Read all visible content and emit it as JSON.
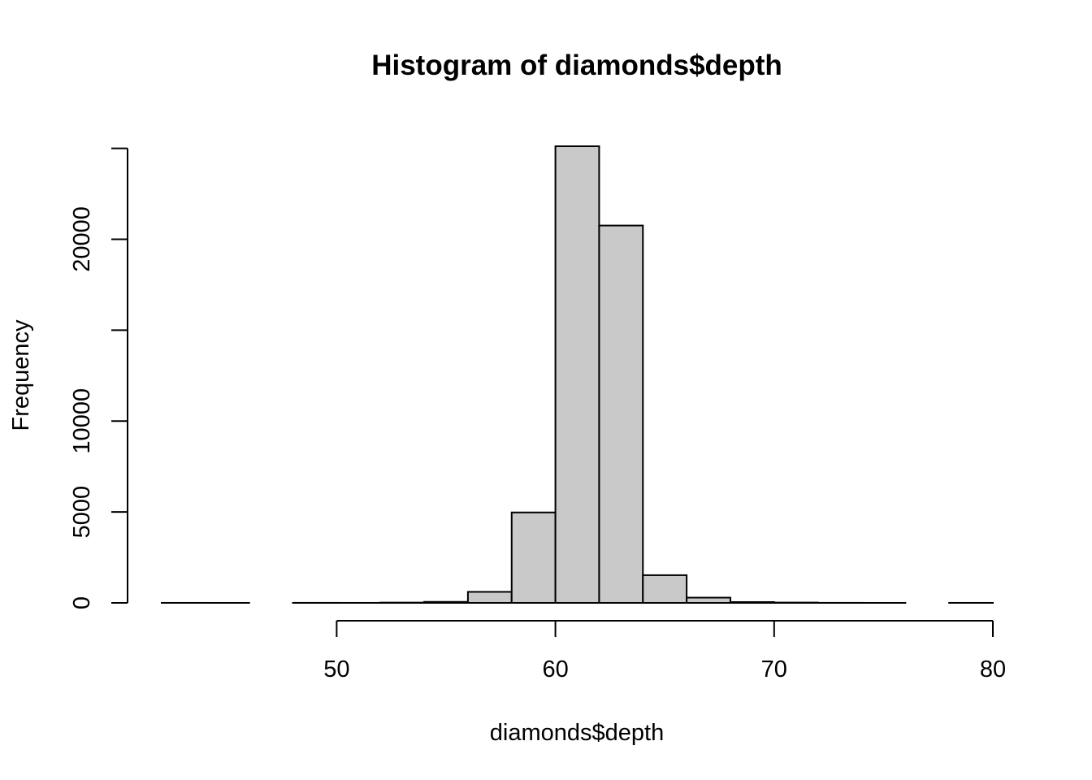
{
  "chart_data": {
    "type": "bar",
    "title": "Histogram of diamonds$depth",
    "xlabel": "diamonds$depth",
    "ylabel": "Frequency",
    "bin_edges": [
      42,
      44,
      46,
      48,
      50,
      52,
      54,
      56,
      58,
      60,
      62,
      64,
      66,
      68,
      70,
      72,
      74,
      76,
      78,
      80
    ],
    "values": [
      2,
      1,
      0,
      3,
      2,
      16,
      55,
      606,
      4974,
      25116,
      20755,
      1523,
      289,
      45,
      18,
      3,
      1,
      0,
      2
    ],
    "xlim": [
      42,
      80
    ],
    "ylim": [
      0,
      25116
    ],
    "xticks": [
      50,
      60,
      70,
      80
    ],
    "xtick_labels": [
      "50",
      "60",
      "70",
      "80"
    ],
    "yticks": [
      0,
      5000,
      10000,
      15000,
      20000,
      25000
    ],
    "ytick_labels": [
      "0",
      "5000",
      "10000",
      "",
      "20000",
      ""
    ],
    "grid": false,
    "bar_color": "#c9c9c9",
    "edge_color": "#000000"
  }
}
